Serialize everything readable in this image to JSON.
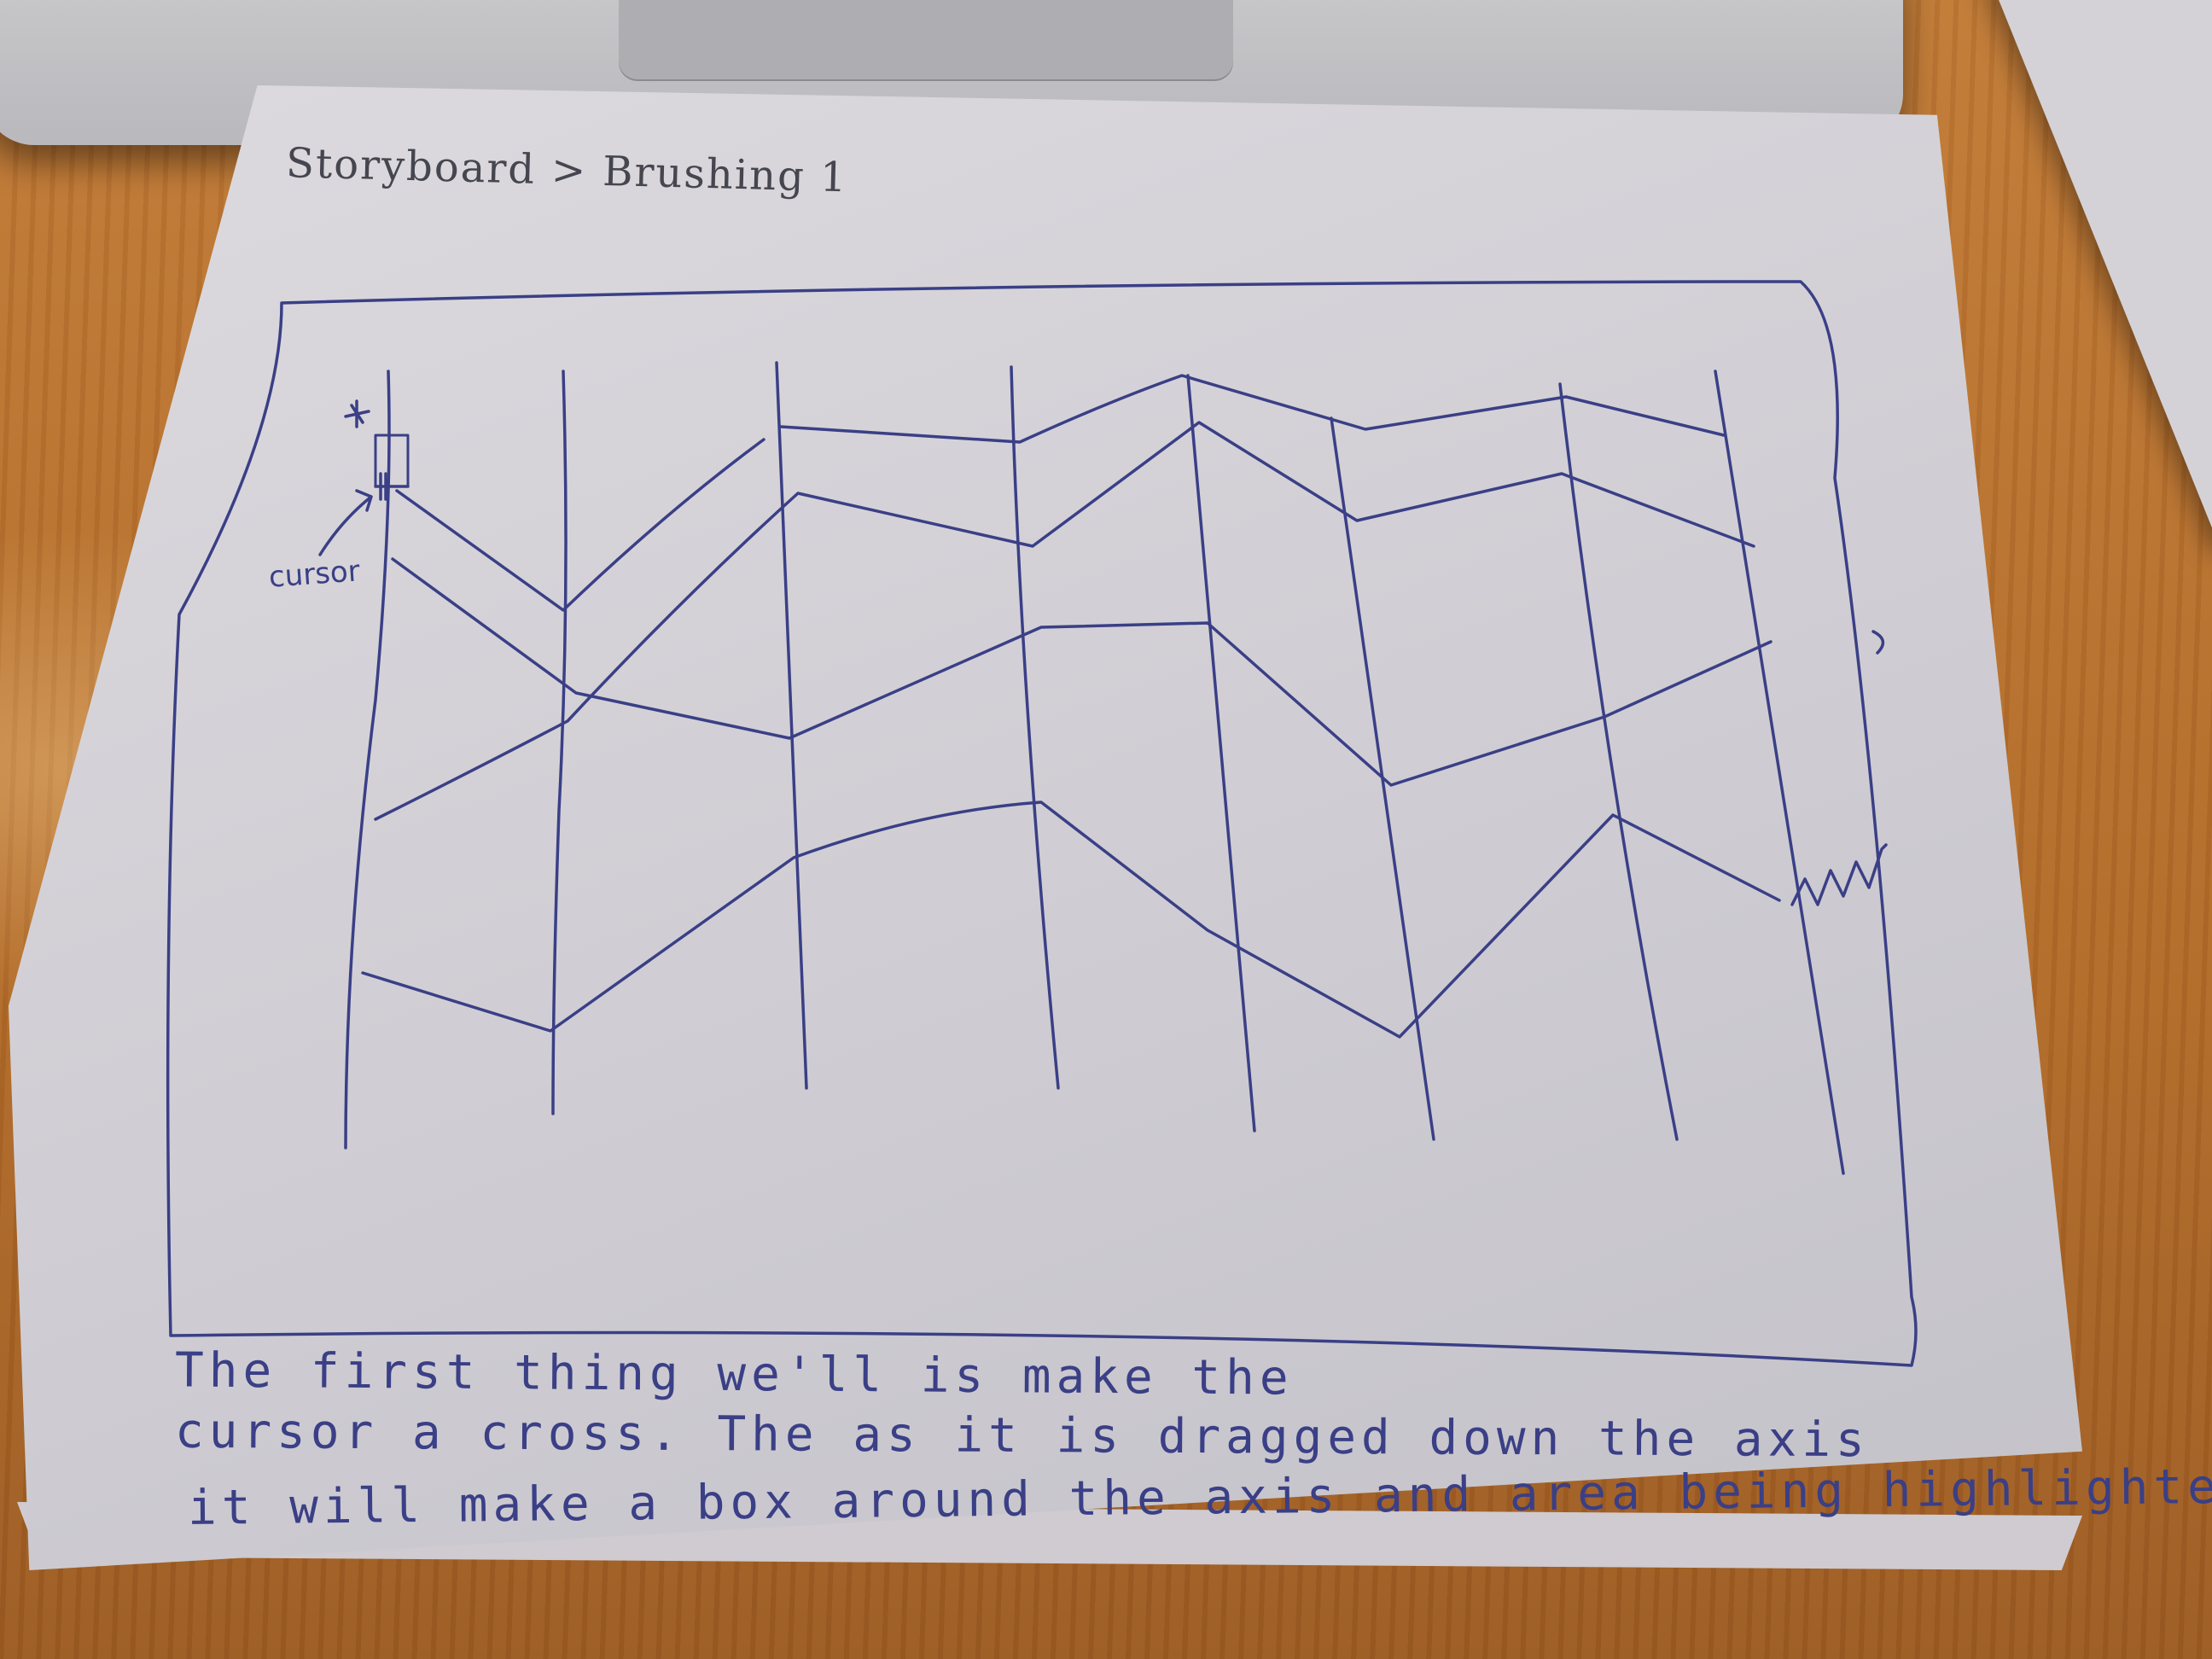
{
  "breadcrumb": {
    "root": "Storyboard",
    "separator": ">",
    "current": "Brushing 1"
  },
  "annotation": {
    "cursor_label": "cursor"
  },
  "caption": {
    "line1": "The first thing we'll is make the",
    "line2": "cursor a cross. The as it is dragged down the axis",
    "line3": "it will make a box around the axis and area being highlighted."
  },
  "colors": {
    "ink": "#3a3f86",
    "pencil": "#45464f",
    "paper": "#d6d4da",
    "desk": "#b5702e"
  }
}
